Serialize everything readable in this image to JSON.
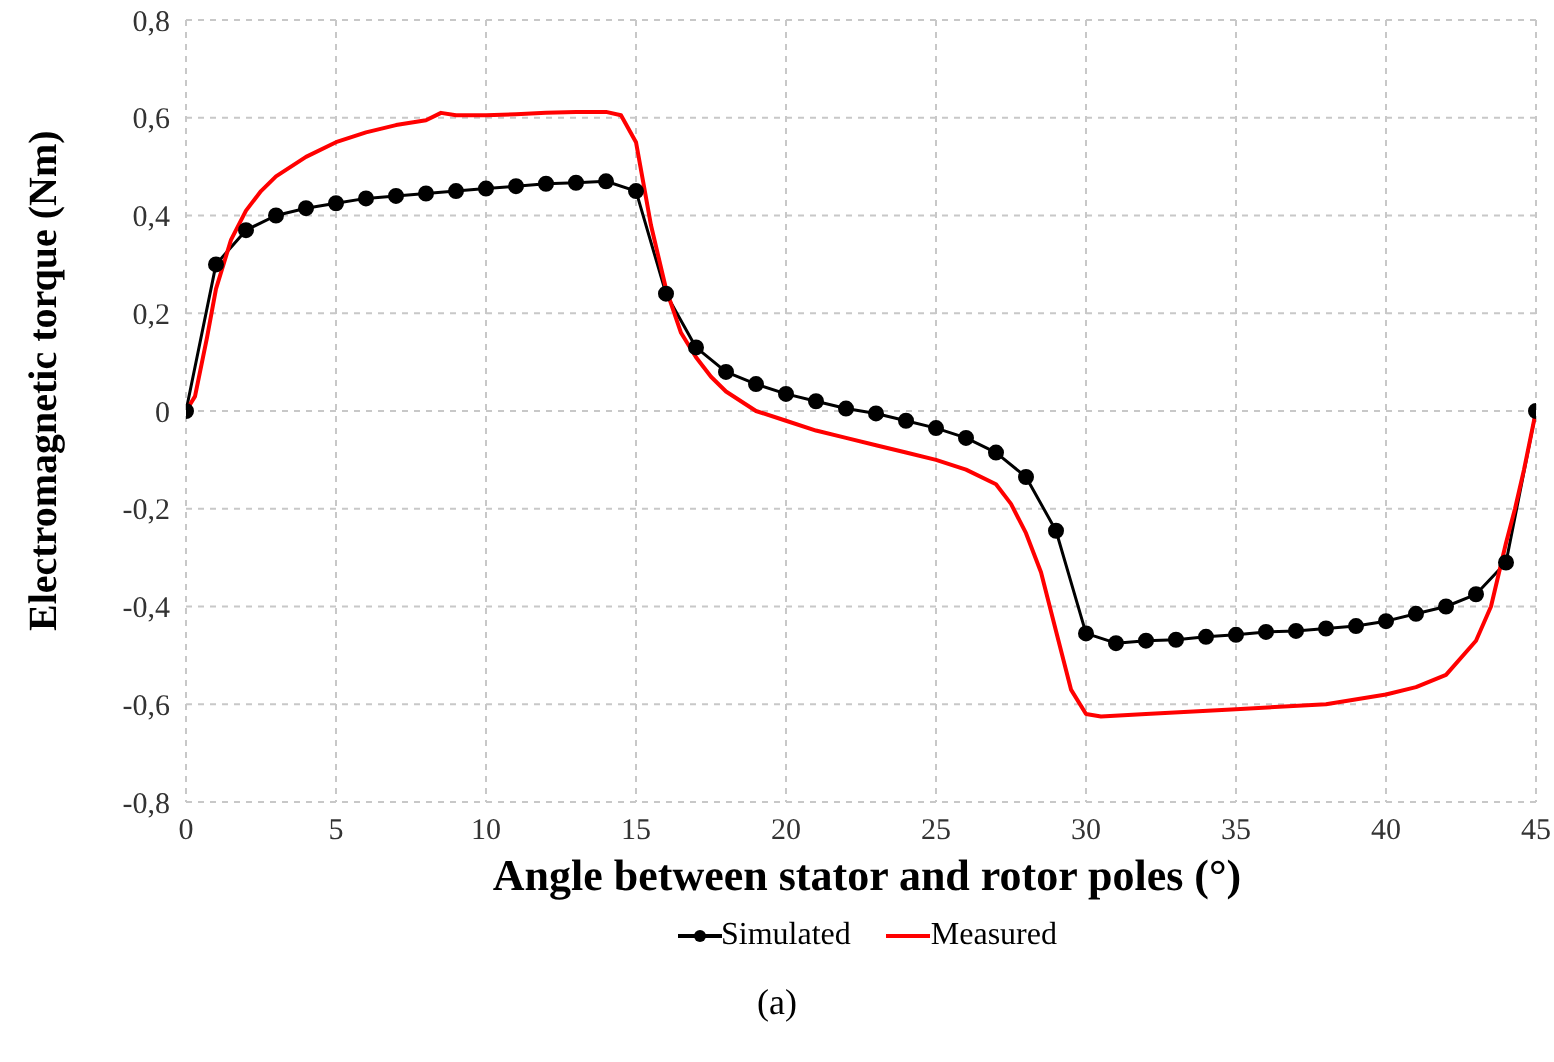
{
  "chart_data": {
    "type": "line",
    "xlabel": "Angle between stator and rotor poles (°)",
    "ylabel": "Electromagnetic torque (Nm)",
    "xlim": [
      0,
      45
    ],
    "xticks": [
      0,
      5,
      10,
      15,
      20,
      25,
      30,
      35,
      40,
      45
    ],
    "ylim": [
      -0.8,
      0.8
    ],
    "yticks": [
      {
        "value": -0.8,
        "label": "-0,8"
      },
      {
        "value": -0.6,
        "label": "-0,6"
      },
      {
        "value": -0.4,
        "label": "-0,4"
      },
      {
        "value": -0.2,
        "label": "-0,2"
      },
      {
        "value": 0,
        "label": "0"
      },
      {
        "value": 0.2,
        "label": "0,2"
      },
      {
        "value": 0.4,
        "label": "0,4"
      },
      {
        "value": 0.6,
        "label": "0,6"
      },
      {
        "value": 0.8,
        "label": "0,8"
      }
    ],
    "grid": true,
    "legend": "bottom",
    "annotations": [
      "(a)"
    ],
    "series": [
      {
        "name": "Simulated",
        "color": "#000000",
        "marker": "circle",
        "x": [
          0,
          1,
          2,
          3,
          4,
          5,
          6,
          7,
          8,
          9,
          10,
          11,
          12,
          13,
          14,
          15,
          16,
          17,
          18,
          19,
          20,
          21,
          22,
          23,
          24,
          25,
          26,
          27,
          28,
          29,
          30,
          31,
          32,
          33,
          34,
          35,
          36,
          37,
          38,
          39,
          40,
          41,
          42,
          43,
          44,
          45
        ],
        "values": [
          0,
          0.3,
          0.37,
          0.4,
          0.415,
          0.425,
          0.435,
          0.44,
          0.445,
          0.45,
          0.455,
          0.46,
          0.465,
          0.467,
          0.47,
          0.45,
          0.24,
          0.13,
          0.08,
          0.055,
          0.035,
          0.02,
          0.005,
          -0.005,
          -0.02,
          -0.035,
          -0.055,
          -0.085,
          -0.135,
          -0.245,
          -0.455,
          -0.475,
          -0.47,
          -0.468,
          -0.462,
          -0.458,
          -0.452,
          -0.45,
          -0.445,
          -0.44,
          -0.43,
          -0.415,
          -0.4,
          -0.375,
          -0.31,
          0
        ]
      },
      {
        "name": "Measured",
        "color": "#ff0000",
        "marker": "none",
        "x": [
          0,
          0.3,
          0.7,
          1,
          1.5,
          2,
          2.5,
          3,
          4,
          5,
          6,
          7,
          8,
          8.5,
          9,
          10,
          11,
          12,
          13,
          14,
          14.5,
          15,
          15.5,
          16,
          16.5,
          17,
          17.5,
          18,
          19,
          20,
          21,
          22,
          23,
          24,
          25,
          26,
          27,
          27.5,
          28,
          28.5,
          29,
          29.5,
          30,
          30.5,
          32,
          35,
          38,
          40,
          41,
          42,
          43,
          43.5,
          44,
          44.3,
          44.6,
          45
        ],
        "values": [
          0,
          0.03,
          0.15,
          0.25,
          0.35,
          0.41,
          0.45,
          0.48,
          0.52,
          0.55,
          0.57,
          0.585,
          0.595,
          0.61,
          0.605,
          0.605,
          0.607,
          0.61,
          0.612,
          0.612,
          0.605,
          0.55,
          0.38,
          0.25,
          0.16,
          0.11,
          0.07,
          0.04,
          0,
          -0.02,
          -0.04,
          -0.055,
          -0.07,
          -0.085,
          -0.1,
          -0.12,
          -0.15,
          -0.19,
          -0.25,
          -0.33,
          -0.45,
          -0.57,
          -0.62,
          -0.625,
          -0.62,
          -0.61,
          -0.6,
          -0.58,
          -0.565,
          -0.54,
          -0.47,
          -0.4,
          -0.27,
          -0.2,
          -0.12,
          0
        ]
      }
    ]
  }
}
